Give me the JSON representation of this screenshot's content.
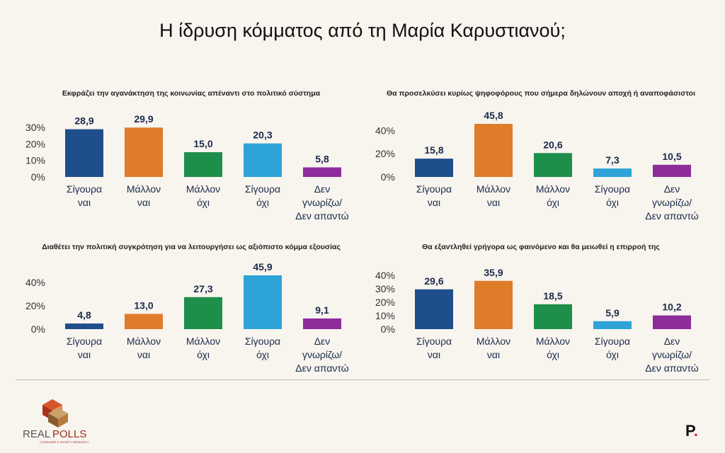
{
  "title": "Η ίδρυση κόμματος από τη Μαρία Καρυστιανού;",
  "colors": [
    "#1f4e8c",
    "#e07b2a",
    "#1e8f4b",
    "#2ea3d8",
    "#8e2c9c"
  ],
  "brand": {
    "name_part1": "REAL",
    "name_part2": "POLLS",
    "tagline": "CONSUMER & SOCIETY RESEARCH"
  },
  "publisher_logo": {
    "letter": "P",
    "dot": "."
  },
  "chart_data": [
    {
      "type": "bar",
      "title": "Εκφράζει την αγανάκτηση της κοινωνίας απέναντι στο πολιτικό σύστημα",
      "categories": [
        [
          "Σίγουρα",
          "ναι"
        ],
        [
          "Μάλλον",
          "ναι"
        ],
        [
          "Μάλλον",
          "όχι"
        ],
        [
          "Σίγουρα",
          "όχι"
        ],
        [
          "Δεν",
          "γνωρίζω/",
          "Δεν απαντώ"
        ]
      ],
      "values": [
        28.9,
        29.9,
        15.0,
        20.3,
        5.8
      ],
      "value_labels": [
        "28,9",
        "29,9",
        "15,0",
        "20,3",
        "5,8"
      ],
      "yticks": [
        0,
        10,
        20,
        30
      ],
      "ytick_labels": [
        "0%",
        "10%",
        "20%",
        "30%"
      ],
      "ylim": [
        0,
        30
      ],
      "grid": false
    },
    {
      "type": "bar",
      "title": "Θα προσελκύσει κυρίως ψηφοφόρους που σήμερα δηλώνουν αποχή ή αναποφάσιστοι",
      "categories": [
        [
          "Σίγουρα",
          "ναι"
        ],
        [
          "Μάλλον",
          "ναι"
        ],
        [
          "Μάλλον",
          "όχι"
        ],
        [
          "Σίγουρα",
          "όχι"
        ],
        [
          "Δεν",
          "γνωρίζω/",
          "Δεν απαντώ"
        ]
      ],
      "values": [
        15.8,
        45.8,
        20.6,
        7.3,
        10.5
      ],
      "value_labels": [
        "15,8",
        "45,8",
        "20,6",
        "7,3",
        "10,5"
      ],
      "yticks": [
        0,
        20,
        40
      ],
      "ytick_labels": [
        "0%",
        "20%",
        "40%"
      ],
      "ylim": [
        0,
        45.8
      ],
      "grid": false
    },
    {
      "type": "bar",
      "title": "Διαθέτει την πολιτική συγκρότηση για να λειτουργήσει ως αξιόπιστο κόμμα εξουσίας",
      "categories": [
        [
          "Σίγουρα",
          "ναι"
        ],
        [
          "Μάλλον",
          "ναι"
        ],
        [
          "Μάλλον",
          "όχι"
        ],
        [
          "Σίγουρα",
          "όχι"
        ],
        [
          "Δεν",
          "γνωρίζω/",
          "Δεν απαντώ"
        ]
      ],
      "values": [
        4.8,
        13.0,
        27.3,
        45.9,
        9.1
      ],
      "value_labels": [
        "4,8",
        "13,0",
        "27,3",
        "45,9",
        "9,1"
      ],
      "yticks": [
        0,
        20,
        40
      ],
      "ytick_labels": [
        "0%",
        "20%",
        "40%"
      ],
      "ylim": [
        0,
        45.9
      ],
      "grid": false
    },
    {
      "type": "bar",
      "title": "Θα εξαντληθεί γρήγορα ως φαινόμενο και θα μειωθεί η επιρροή της",
      "categories": [
        [
          "Σίγουρα",
          "ναι"
        ],
        [
          "Μάλλον",
          "ναι"
        ],
        [
          "Μάλλον",
          "όχι"
        ],
        [
          "Σίγουρα",
          "όχι"
        ],
        [
          "Δεν",
          "γνωρίζω/",
          "Δεν απαντώ"
        ]
      ],
      "values": [
        29.6,
        35.9,
        18.5,
        5.9,
        10.2
      ],
      "value_labels": [
        "29,6",
        "35,9",
        "18,5",
        "5,9",
        "10,2"
      ],
      "yticks": [
        0,
        10,
        20,
        30,
        40
      ],
      "ytick_labels": [
        "0%",
        "10%",
        "20%",
        "30%",
        "40%"
      ],
      "ylim": [
        0,
        40
      ],
      "grid": false
    }
  ]
}
